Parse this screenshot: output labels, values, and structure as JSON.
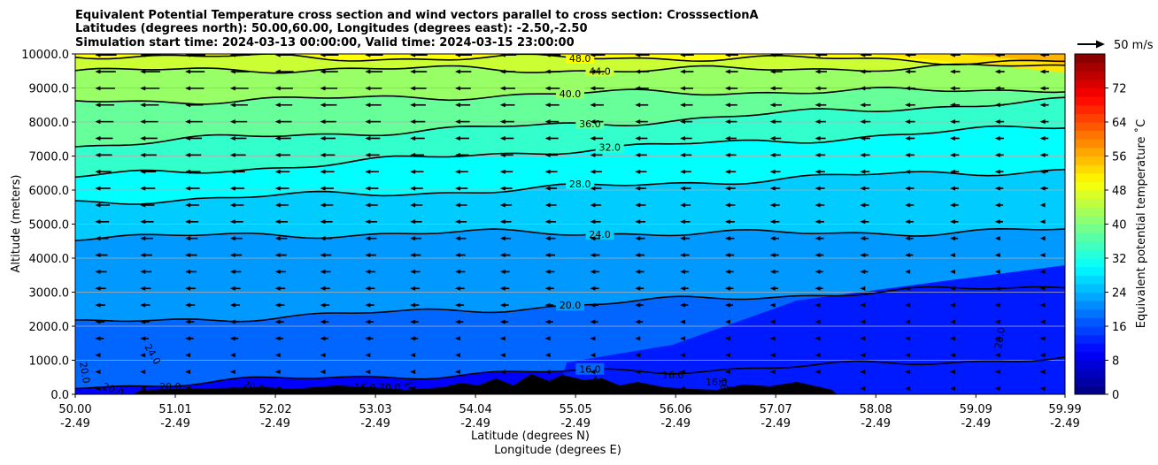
{
  "chart_data": {
    "type": "contour-cross-section",
    "title_lines": [
      "Equivalent Potential Temperature cross section and wind vectors parallel to cross section: CrosssectionA",
      "Latitudes (degrees north): 50.00,60.00, Longitudes (degrees east): -2.50,-2.50",
      "Simulation start time: 2024-03-13 00:00:00, Valid time: 2024-03-15 23:00:00"
    ],
    "xlabel": "Latitude (degrees N)",
    "xlabel2": "Longitude (degrees E)",
    "ylabel": "Altitude (meters)",
    "colorbar_label": "Equivalent potential temperature ˚C",
    "x_ticks": [
      {
        "lat": "50.00",
        "lon": "-2.49"
      },
      {
        "lat": "51.01",
        "lon": "-2.49"
      },
      {
        "lat": "52.02",
        "lon": "-2.49"
      },
      {
        "lat": "53.03",
        "lon": "-2.49"
      },
      {
        "lat": "54.04",
        "lon": "-2.49"
      },
      {
        "lat": "55.05",
        "lon": "-2.49"
      },
      {
        "lat": "56.06",
        "lon": "-2.49"
      },
      {
        "lat": "57.07",
        "lon": "-2.49"
      },
      {
        "lat": "58.08",
        "lon": "-2.49"
      },
      {
        "lat": "59.09",
        "lon": "-2.49"
      },
      {
        "lat": "59.99",
        "lon": "-2.49"
      }
    ],
    "y_ticks": [
      "0.0",
      "1000.0",
      "2000.0",
      "3000.0",
      "4000.0",
      "5000.0",
      "6000.0",
      "7000.0",
      "8000.0",
      "9000.0",
      "10000.0"
    ],
    "ylim": [
      0,
      10000
    ],
    "xlim": [
      50.0,
      59.99
    ],
    "colorbar_ticks": [
      "0",
      "8",
      "16",
      "24",
      "32",
      "40",
      "48",
      "56",
      "64",
      "72"
    ],
    "colorbar_range": [
      0,
      80
    ],
    "colormap": "jet",
    "wind_reference": "50 m/s",
    "contours": [
      {
        "level": 16,
        "label": "16.0",
        "left_alt": 250,
        "right_alt": 1050
      },
      {
        "level": 20,
        "label": "20.0",
        "left_alt": 2050,
        "right_alt": 3200
      },
      {
        "level": 24,
        "label": "24.0",
        "left_alt": 4650,
        "right_alt": 4800
      },
      {
        "level": 28,
        "label": "28.0",
        "left_alt": 5600,
        "right_alt": 6600
      },
      {
        "level": 32,
        "label": "32.0",
        "left_alt": 6400,
        "right_alt": 7900
      },
      {
        "level": 36,
        "label": "36.0",
        "left_alt": 7300,
        "right_alt": 8600
      },
      {
        "level": 40,
        "label": "40.0",
        "left_alt": 8600,
        "right_alt": 9000
      },
      {
        "level": 44,
        "label": "44.0",
        "left_alt": 9500,
        "right_alt": 9600
      },
      {
        "level": 48,
        "label": "48.0",
        "left_alt": 9950,
        "right_alt": 9800
      }
    ],
    "extra_contour_labels": [
      "20.0",
      "24.0",
      "20.0",
      "20.0",
      "20.0",
      "16.0",
      "16.0",
      "20.0",
      "16.0",
      "16.0",
      "16.0",
      "16.0",
      "20.0"
    ]
  }
}
